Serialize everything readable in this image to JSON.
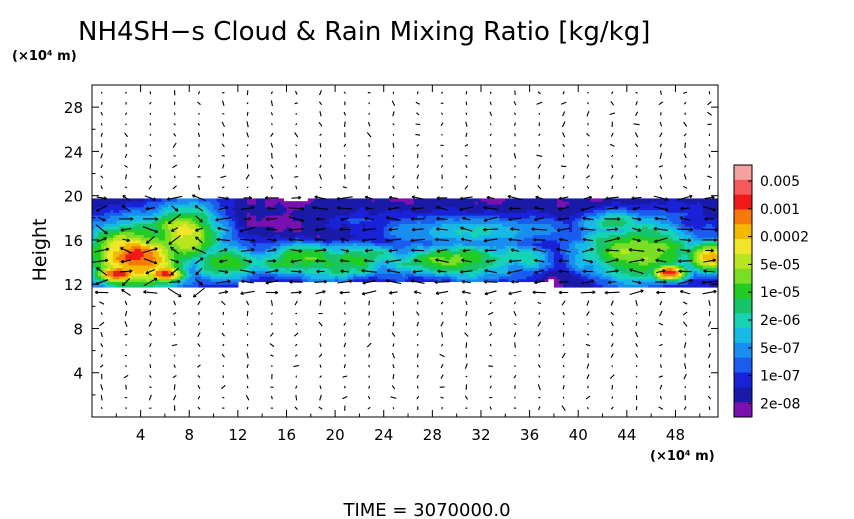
{
  "chart_data": {
    "type": "heatmap",
    "title": "NH4SH−s Cloud & Rain Mixing Ratio [kg/kg]",
    "ylabel": "Height",
    "y_unit": "(×10⁴ m)",
    "x_unit": "(×10⁴ m)",
    "footer": "TIME = 3070000.0",
    "xlim": [
      0,
      51.5
    ],
    "ylim": [
      0,
      30
    ],
    "x_ticks": [
      4,
      8,
      12,
      16,
      20,
      24,
      28,
      32,
      36,
      40,
      44,
      48
    ],
    "y_ticks": [
      4,
      8,
      12,
      16,
      20,
      24,
      28
    ],
    "x_tick_labels": [
      "4",
      "8",
      "12",
      "16",
      "20",
      "24",
      "28",
      "32",
      "36",
      "40",
      "44",
      "48"
    ],
    "y_tick_labels": [
      "4",
      "8",
      "12",
      "16",
      "20",
      "24",
      "28"
    ],
    "colorbar": {
      "labels": [
        "0.005",
        "0.001",
        "0.0002",
        "5e-05",
        "1e-05",
        "2e-06",
        "5e-07",
        "1e-07",
        "2e-08"
      ],
      "colors": [
        "#f7a0a0",
        "#f55a5a",
        "#f01818",
        "#f57a0a",
        "#f5b800",
        "#f2e62a",
        "#b8e61e",
        "#7add26",
        "#22cc22",
        "#18c46a",
        "#18d2b6",
        "#17b9e6",
        "#1a8ef0",
        "#1a5cee",
        "#1a22d8",
        "#1a1aa8",
        "#7a10b0"
      ]
    },
    "cloud_regions": [
      {
        "x": [
          0,
          12
        ],
        "y": [
          12,
          19.5
        ],
        "level": "1e-05 to 0.001"
      },
      {
        "x": [
          12,
          38
        ],
        "y": [
          12,
          16.5
        ],
        "level": "1e-07 to 5e-05"
      },
      {
        "x": [
          23,
          39
        ],
        "y": [
          15,
          18.5
        ],
        "level": "2e-08 to 1e-07"
      },
      {
        "x": [
          38,
          51.5
        ],
        "y": [
          12,
          18.5
        ],
        "level": "1e-07 to 0.001"
      }
    ],
    "vector_field": "wind arrows"
  }
}
